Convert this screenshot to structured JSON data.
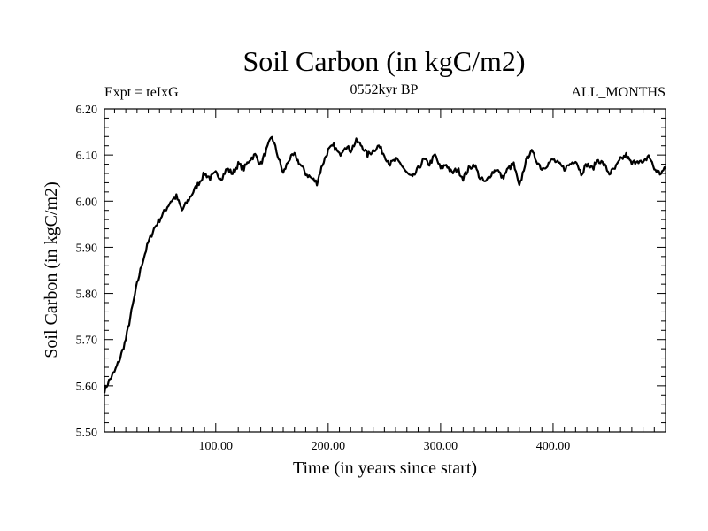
{
  "chart_data": {
    "type": "line",
    "title": "Soil Carbon (in kgC/m2)",
    "subtitle_left": "Expt = teIxG",
    "subtitle_center": "0552kyr BP",
    "subtitle_right": "ALL_MONTHS",
    "xlabel": "Time (in years since start)",
    "ylabel": "Soil Carbon (in kgC/m2)",
    "xlim": [
      1,
      500
    ],
    "ylim": [
      5.5,
      6.2
    ],
    "x_ticks": [
      "100.00",
      "200.00",
      "300.00",
      "400.00"
    ],
    "y_ticks": [
      "5.50",
      "5.60",
      "5.70",
      "5.80",
      "5.90",
      "6.00",
      "6.10",
      "6.20"
    ],
    "grid": false,
    "series": [
      {
        "x": [
          1,
          5,
          10,
          15,
          20,
          25,
          30,
          35,
          40,
          45,
          50,
          55,
          60,
          65,
          70,
          75,
          80,
          85,
          90,
          95,
          100,
          105,
          110,
          115,
          120,
          125,
          130,
          135,
          140,
          145,
          150,
          155,
          160,
          165,
          170,
          175,
          180,
          185,
          190,
          195,
          200,
          205,
          210,
          215,
          220,
          225,
          230,
          235,
          240,
          245,
          250,
          255,
          260,
          265,
          270,
          275,
          280,
          285,
          290,
          295,
          300,
          305,
          310,
          315,
          320,
          325,
          330,
          335,
          340,
          345,
          350,
          355,
          360,
          365,
          370,
          375,
          380,
          385,
          390,
          395,
          400,
          405,
          410,
          415,
          420,
          425,
          430,
          435,
          440,
          445,
          450,
          455,
          460,
          465,
          470,
          475,
          480,
          485,
          490,
          495,
          500
        ],
        "values": [
          5.59,
          5.61,
          5.63,
          5.66,
          5.7,
          5.76,
          5.82,
          5.87,
          5.91,
          5.94,
          5.96,
          5.98,
          6.0,
          6.01,
          5.98,
          6.0,
          6.02,
          6.04,
          6.06,
          6.05,
          6.06,
          6.05,
          6.07,
          6.06,
          6.08,
          6.07,
          6.09,
          6.1,
          6.08,
          6.11,
          6.14,
          6.1,
          6.06,
          6.09,
          6.1,
          6.08,
          6.06,
          6.05,
          6.04,
          6.08,
          6.11,
          6.12,
          6.1,
          6.12,
          6.11,
          6.13,
          6.12,
          6.1,
          6.11,
          6.12,
          6.1,
          6.08,
          6.09,
          6.08,
          6.06,
          6.05,
          6.07,
          6.09,
          6.08,
          6.1,
          6.07,
          6.08,
          6.06,
          6.07,
          6.05,
          6.07,
          6.08,
          6.05,
          6.04,
          6.06,
          6.07,
          6.05,
          6.07,
          6.08,
          6.03,
          6.08,
          6.11,
          6.09,
          6.07,
          6.08,
          6.09,
          6.08,
          6.07,
          6.08,
          6.09,
          6.06,
          6.08,
          6.07,
          6.09,
          6.08,
          6.06,
          6.07,
          6.09,
          6.1,
          6.08,
          6.09,
          6.08,
          6.1,
          6.07,
          6.06,
          6.07
        ]
      }
    ]
  }
}
